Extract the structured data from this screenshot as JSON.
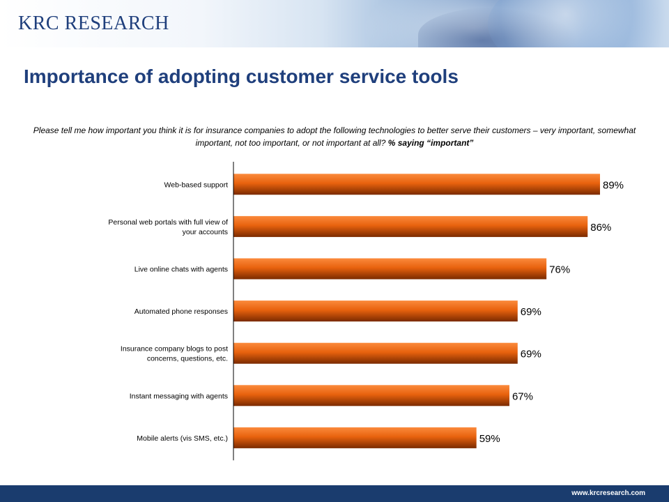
{
  "header": {
    "logo_text": "KRC RESEARCH"
  },
  "footer": {
    "url": "www.krcresearch.com"
  },
  "chart_data": {
    "type": "bar",
    "orientation": "horizontal",
    "title": "Importance of adopting customer service tools",
    "subtitle": "Please tell me how important you think it is for insurance companies to adopt the following technologies to better serve their customers – very important, somewhat important, not too important, or not important at all?",
    "subtitle_emphasis": "% saying “important”",
    "categories": [
      [
        "Web-based support"
      ],
      [
        "Personal web portals with full view of",
        "your accounts"
      ],
      [
        "Live online chats with agents"
      ],
      [
        "Automated phone responses"
      ],
      [
        "Insurance company blogs to post",
        "concerns, questions, etc."
      ],
      [
        "Instant messaging with agents"
      ],
      [
        "Mobile alerts (vis SMS, etc.)"
      ]
    ],
    "values": [
      89,
      86,
      76,
      69,
      69,
      67,
      59
    ],
    "value_labels": [
      "89%",
      "86%",
      "76%",
      "69%",
      "69%",
      "67%",
      "59%"
    ],
    "xlim": [
      0,
      100
    ],
    "grid": false,
    "bar_color": "#e8620e"
  }
}
